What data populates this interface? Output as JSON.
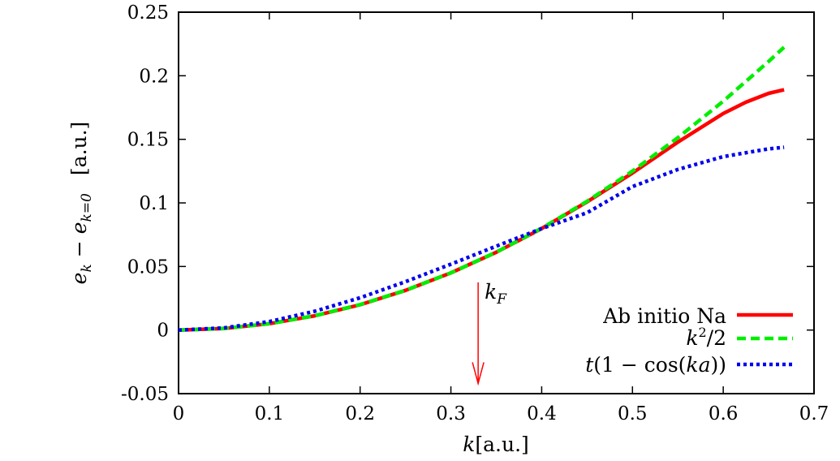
{
  "chart_data": {
    "type": "line",
    "xlabel": "k[a.u.]",
    "ylabel": "e_k − e_{k=0}   [a.u.]",
    "xlim": [
      0,
      0.7
    ],
    "ylim": [
      -0.05,
      0.25
    ],
    "x_ticks": [
      "0",
      "0.1",
      "0.2",
      "0.3",
      "0.4",
      "0.5",
      "0.6",
      "0.7"
    ],
    "y_ticks": [
      "-0.05",
      "0",
      "0.05",
      "0.1",
      "0.15",
      "0.2",
      "0.25"
    ],
    "x_tick_values": [
      0,
      0.1,
      0.2,
      0.3,
      0.4,
      0.5,
      0.6,
      0.7
    ],
    "y_tick_values": [
      -0.05,
      0,
      0.05,
      0.1,
      0.15,
      0.2,
      0.25
    ],
    "legend_position": "bottom-right",
    "series": [
      {
        "name": "Ab initio Na",
        "color": "#ff0000",
        "style": "solid",
        "x": [
          0,
          0.05,
          0.1,
          0.15,
          0.2,
          0.25,
          0.3,
          0.35,
          0.4,
          0.45,
          0.5,
          0.55,
          0.6,
          0.625,
          0.65,
          0.667
        ],
        "y": [
          0,
          0.0012,
          0.005,
          0.0112,
          0.0199,
          0.0312,
          0.045,
          0.0612,
          0.0798,
          0.1008,
          0.1235,
          0.1478,
          0.1703,
          0.1792,
          0.1862,
          0.189
        ]
      },
      {
        "name": "k^2/2",
        "color": "#00ee00",
        "style": "dashed",
        "x": [
          0,
          0.05,
          0.1,
          0.15,
          0.2,
          0.25,
          0.3,
          0.35,
          0.4,
          0.45,
          0.5,
          0.55,
          0.6,
          0.65,
          0.667
        ],
        "y": [
          0,
          0.00125,
          0.005,
          0.01125,
          0.02,
          0.03125,
          0.045,
          0.06125,
          0.08,
          0.10125,
          0.125,
          0.15125,
          0.18,
          0.21125,
          0.2224
        ]
      },
      {
        "name": "t(1 − cos(ka))",
        "color": "#0000ee",
        "style": "dotted",
        "x": [
          0,
          0.05,
          0.1,
          0.15,
          0.2,
          0.25,
          0.3,
          0.35,
          0.4,
          0.45,
          0.5,
          0.55,
          0.6,
          0.65,
          0.667
        ],
        "y": [
          0,
          0.0017,
          0.0067,
          0.0148,
          0.0254,
          0.038,
          0.0518,
          0.066,
          0.0798,
          0.0923,
          0.1128,
          0.1263,
          0.1364,
          0.1425,
          0.1437
        ]
      }
    ],
    "annotations": [
      {
        "text": "k_F",
        "x": 0.33,
        "arrow_from_y": 0.0375,
        "arrow_to_y": -0.042,
        "color": "#ff0000"
      }
    ]
  },
  "labels": {
    "x_axis_main": "k",
    "x_axis_unit": "[a.u.]",
    "y_axis_e": "e",
    "y_axis_k": "k",
    "y_axis_minus": "−",
    "y_axis_e2": "e",
    "y_axis_k0": "k=0",
    "y_axis_unit": "[a.u.]",
    "legend_1": "Ab initio Na",
    "legend_2_k": "k",
    "legend_2_sup": "2",
    "legend_2_rest": "/2",
    "legend_3_t": "t",
    "legend_3_mid": "(1 − cos(",
    "legend_3_ka": "ka",
    "legend_3_end": "))",
    "annot_k": "k",
    "annot_sub": "F"
  }
}
